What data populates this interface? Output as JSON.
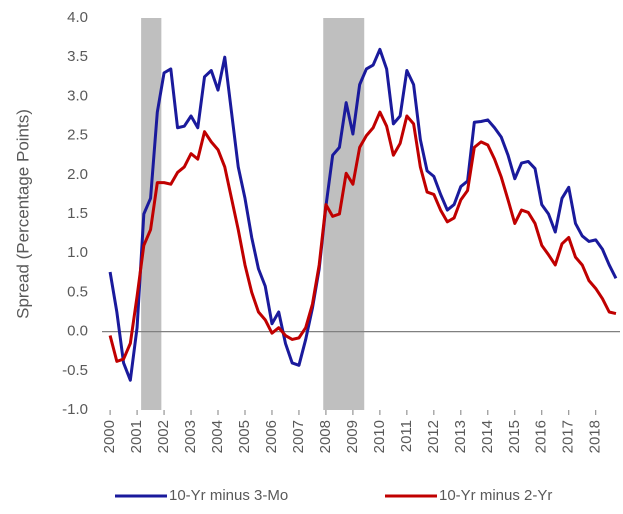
{
  "chart_data": {
    "type": "line",
    "y_label": "Spread (Percentage Points)",
    "x": [
      2000,
      2000.25,
      2000.5,
      2000.75,
      2001,
      2001.25,
      2001.5,
      2001.75,
      2002,
      2002.25,
      2002.5,
      2002.75,
      2003,
      2003.25,
      2003.5,
      2003.75,
      2004,
      2004.25,
      2004.5,
      2004.75,
      2005,
      2005.25,
      2005.5,
      2005.75,
      2006,
      2006.25,
      2006.5,
      2006.75,
      2007,
      2007.25,
      2007.5,
      2007.75,
      2008,
      2008.25,
      2008.5,
      2008.75,
      2009,
      2009.25,
      2009.5,
      2009.75,
      2010,
      2010.25,
      2010.5,
      2010.75,
      2011,
      2011.25,
      2011.5,
      2011.75,
      2012,
      2012.25,
      2012.5,
      2012.75,
      2013,
      2013.25,
      2013.5,
      2013.75,
      2014,
      2014.25,
      2014.5,
      2014.75,
      2015,
      2015.25,
      2015.5,
      2015.75,
      2016,
      2016.25,
      2016.5,
      2016.75,
      2017,
      2017.25,
      2017.5,
      2017.75,
      2018,
      2018.25,
      2018.5,
      2018.75
    ],
    "series": [
      {
        "name": "10-Yr minus 3-Mo",
        "color": "#1a1a9c",
        "values": [
          0.76,
          0.25,
          -0.4,
          -0.62,
          0.05,
          1.5,
          1.7,
          2.8,
          3.3,
          3.35,
          2.6,
          2.62,
          2.75,
          2.6,
          3.25,
          3.33,
          3.08,
          3.5,
          2.8,
          2.1,
          1.7,
          1.2,
          0.8,
          0.58,
          0.1,
          0.25,
          -0.15,
          -0.4,
          -0.43,
          -0.1,
          0.3,
          0.8,
          1.6,
          2.25,
          2.35,
          2.92,
          2.52,
          3.15,
          3.35,
          3.4,
          3.6,
          3.35,
          2.65,
          2.75,
          3.33,
          3.15,
          2.45,
          2.05,
          1.98,
          1.75,
          1.55,
          1.62,
          1.85,
          1.92,
          2.67,
          2.68,
          2.7,
          2.6,
          2.48,
          2.25,
          1.95,
          2.15,
          2.17,
          2.08,
          1.62,
          1.5,
          1.27,
          1.7,
          1.84,
          1.38,
          1.22,
          1.15,
          1.17,
          1.05,
          0.85,
          0.68
        ]
      },
      {
        "name": "10-Yr minus 2-Yr",
        "color": "#c00000",
        "values": [
          -0.05,
          -0.38,
          -0.35,
          -0.15,
          0.45,
          1.1,
          1.3,
          1.9,
          1.9,
          1.88,
          2.03,
          2.1,
          2.27,
          2.2,
          2.55,
          2.42,
          2.32,
          2.1,
          1.7,
          1.3,
          0.85,
          0.5,
          0.25,
          0.15,
          -0.02,
          0.05,
          -0.05,
          -0.1,
          -0.08,
          0.05,
          0.35,
          0.85,
          1.62,
          1.47,
          1.5,
          2.02,
          1.88,
          2.35,
          2.5,
          2.6,
          2.8,
          2.62,
          2.25,
          2.4,
          2.75,
          2.65,
          2.1,
          1.78,
          1.75,
          1.55,
          1.4,
          1.45,
          1.68,
          1.8,
          2.35,
          2.42,
          2.38,
          2.2,
          1.97,
          1.68,
          1.38,
          1.55,
          1.52,
          1.38,
          1.1,
          0.98,
          0.85,
          1.12,
          1.2,
          0.95,
          0.85,
          0.65,
          0.55,
          0.42,
          0.25,
          0.23
        ]
      }
    ],
    "recessions": [
      [
        2001.15,
        2001.9
      ],
      [
        2007.9,
        2009.42
      ]
    ],
    "recession_color": "#bfbfbf",
    "xlim": [
      1999.7,
      2018.9
    ],
    "xticks": [
      2000,
      2001,
      2002,
      2003,
      2004,
      2005,
      2006,
      2007,
      2008,
      2009,
      2010,
      2011,
      2012,
      2013,
      2014,
      2015,
      2016,
      2017,
      2018
    ],
    "ylim": [
      -1,
      4
    ],
    "yticks": [
      {
        "value": -1,
        "label": "-1.0"
      },
      {
        "value": -0.5,
        "label": "-0.5"
      },
      {
        "value": 0,
        "label": "0.0"
      },
      {
        "value": 0.5,
        "label": "0.5"
      },
      {
        "value": 1,
        "label": "1.0"
      },
      {
        "value": 1.5,
        "label": "1.5"
      },
      {
        "value": 2,
        "label": "2.0"
      },
      {
        "value": 2.5,
        "label": "2.5"
      },
      {
        "value": 3,
        "label": "3.0"
      },
      {
        "value": 3.5,
        "label": "3.5"
      },
      {
        "value": 4,
        "label": "4.0"
      }
    ],
    "grid": false
  }
}
